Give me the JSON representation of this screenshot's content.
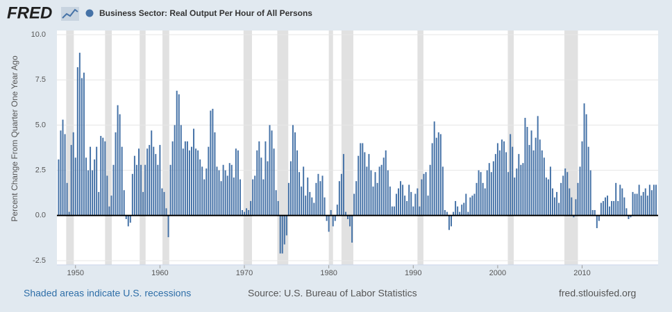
{
  "brand": "FRED",
  "footer": {
    "recessions_note": "Shaded areas indicate U.S. recessions",
    "source": "Source: U.S. Bureau of Labor Statistics",
    "site": "fred.stlouisfed.org"
  },
  "chart_data": {
    "type": "bar",
    "y_label": "Percent Change From Quarter One Year Ago",
    "xlim": [
      1947.8,
      2019.0
    ],
    "ylim": [
      -2.5,
      10.0
    ],
    "xticks": [
      1950,
      1960,
      1970,
      1980,
      1990,
      2000,
      2010
    ],
    "yticks": [
      {
        "value": -2.5,
        "label": "-2.5"
      },
      {
        "value": 0,
        "label": "0.0"
      },
      2.5,
      {
        "value": 5,
        "label": "5.0"
      },
      7.5,
      {
        "value": 10,
        "label": "10.0"
      }
    ],
    "grid": true,
    "recession_color": "#e1e1e1",
    "recessions": [
      [
        1948.9,
        1949.8
      ],
      [
        1953.5,
        1954.3
      ],
      [
        1957.6,
        1958.3
      ],
      [
        1960.3,
        1961.1
      ],
      [
        1969.9,
        1970.9
      ],
      [
        1973.9,
        1975.2
      ],
      [
        1980.0,
        1980.5
      ],
      [
        1981.5,
        1982.9
      ],
      [
        1990.5,
        1991.2
      ],
      [
        2001.2,
        2001.9
      ],
      [
        2007.9,
        2009.5
      ]
    ],
    "x": [
      1948,
      1948.25,
      1948.5,
      1948.75,
      1949,
      1949.25,
      1949.5,
      1949.75,
      1950,
      1950.25,
      1950.5,
      1950.75,
      1951,
      1951.25,
      1951.5,
      1951.75,
      1952,
      1952.25,
      1952.5,
      1952.75,
      1953,
      1953.25,
      1953.5,
      1953.75,
      1954,
      1954.25,
      1954.5,
      1954.75,
      1955,
      1955.25,
      1955.5,
      1955.75,
      1956,
      1956.25,
      1956.5,
      1956.75,
      1957,
      1957.25,
      1957.5,
      1957.75,
      1958,
      1958.25,
      1958.5,
      1958.75,
      1959,
      1959.25,
      1959.5,
      1959.75,
      1960,
      1960.25,
      1960.5,
      1960.75,
      1961,
      1961.25,
      1961.5,
      1961.75,
      1962,
      1962.25,
      1962.5,
      1962.75,
      1963,
      1963.25,
      1963.5,
      1963.75,
      1964,
      1964.25,
      1964.5,
      1964.75,
      1965,
      1965.25,
      1965.5,
      1965.75,
      1966,
      1966.25,
      1966.5,
      1966.75,
      1967,
      1967.25,
      1967.5,
      1967.75,
      1968,
      1968.25,
      1968.5,
      1968.75,
      1969,
      1969.25,
      1969.5,
      1969.75,
      1970,
      1970.25,
      1970.5,
      1970.75,
      1971,
      1971.25,
      1971.5,
      1971.75,
      1972,
      1972.25,
      1972.5,
      1972.75,
      1973,
      1973.25,
      1973.5,
      1973.75,
      1974,
      1974.25,
      1974.5,
      1974.75,
      1975,
      1975.25,
      1975.5,
      1975.75,
      1976,
      1976.25,
      1976.5,
      1976.75,
      1977,
      1977.25,
      1977.5,
      1977.75,
      1978,
      1978.25,
      1978.5,
      1978.75,
      1979,
      1979.25,
      1979.5,
      1979.75,
      1980,
      1980.25,
      1980.5,
      1980.75,
      1981,
      1981.25,
      1981.5,
      1981.75,
      1982,
      1982.25,
      1982.5,
      1982.75,
      1983,
      1983.25,
      1983.5,
      1983.75,
      1984,
      1984.25,
      1984.5,
      1984.75,
      1985,
      1985.25,
      1985.5,
      1985.75,
      1986,
      1986.25,
      1986.5,
      1986.75,
      1987,
      1987.25,
      1987.5,
      1987.75,
      1988,
      1988.25,
      1988.5,
      1988.75,
      1989,
      1989.25,
      1989.5,
      1989.75,
      1990,
      1990.25,
      1990.5,
      1990.75,
      1991,
      1991.25,
      1991.5,
      1991.75,
      1992,
      1992.25,
      1992.5,
      1992.75,
      1993,
      1993.25,
      1993.5,
      1993.75,
      1994,
      1994.25,
      1994.5,
      1994.75,
      1995,
      1995.25,
      1995.5,
      1995.75,
      1996,
      1996.25,
      1996.5,
      1996.75,
      1997,
      1997.25,
      1997.5,
      1997.75,
      1998,
      1998.25,
      1998.5,
      1998.75,
      1999,
      1999.25,
      1999.5,
      1999.75,
      2000,
      2000.25,
      2000.5,
      2000.75,
      2001,
      2001.25,
      2001.5,
      2001.75,
      2002,
      2002.25,
      2002.5,
      2002.75,
      2003,
      2003.25,
      2003.5,
      2003.75,
      2004,
      2004.25,
      2004.5,
      2004.75,
      2005,
      2005.25,
      2005.5,
      2005.75,
      2006,
      2006.25,
      2006.5,
      2006.75,
      2007,
      2007.25,
      2007.5,
      2007.75,
      2008,
      2008.25,
      2008.5,
      2008.75,
      2009,
      2009.25,
      2009.5,
      2009.75,
      2010,
      2010.25,
      2010.5,
      2010.75,
      2011,
      2011.25,
      2011.5,
      2011.75,
      2012,
      2012.25,
      2012.5,
      2012.75,
      2013,
      2013.25,
      2013.5,
      2013.75,
      2014,
      2014.25,
      2014.5,
      2014.75,
      2015,
      2015.25,
      2015.5,
      2015.75,
      2016,
      2016.25,
      2016.5,
      2016.75,
      2017,
      2017.25,
      2017.5,
      2017.75,
      2018,
      2018.25,
      2018.5,
      2018.75
    ],
    "series": [
      {
        "name": "Business Sector: Real Output Per Hour of All Persons",
        "color": "#4572a7",
        "values": [
          3.1,
          4.7,
          5.3,
          4.5,
          1.8,
          0.2,
          3.9,
          4.6,
          3.2,
          8.2,
          9.0,
          7.6,
          7.9,
          3.2,
          2.5,
          3.8,
          2.5,
          3.1,
          3.8,
          1.3,
          4.4,
          4.3,
          4.1,
          2.2,
          0.5,
          1.1,
          2.8,
          4.6,
          6.1,
          5.6,
          3.8,
          1.4,
          -0.2,
          -0.6,
          -0.4,
          2.3,
          3.3,
          2.8,
          3.7,
          2.8,
          1.3,
          2.8,
          3.7,
          3.9,
          4.7,
          3.8,
          3.4,
          2.8,
          3.9,
          1.5,
          1.3,
          0.4,
          -1.2,
          2.8,
          4.1,
          5.0,
          6.9,
          6.7,
          5.0,
          3.7,
          4.1,
          4.1,
          3.6,
          3.8,
          4.8,
          3.7,
          3.6,
          3.1,
          2.7,
          2.0,
          2.6,
          3.8,
          5.8,
          5.9,
          4.6,
          2.7,
          2.5,
          1.9,
          2.8,
          2.5,
          2.2,
          2.9,
          2.8,
          2.1,
          3.7,
          3.6,
          2.0,
          0.3,
          0.2,
          0.4,
          0.3,
          0.8,
          2.0,
          2.2,
          3.6,
          4.1,
          3.2,
          2.0,
          4.1,
          3.0,
          5.0,
          4.7,
          3.7,
          1.4,
          0.8,
          -2.1,
          -2.1,
          -1.6,
          -1.1,
          1.8,
          3.0,
          5.0,
          4.6,
          3.6,
          2.4,
          1.6,
          2.7,
          1.1,
          2.1,
          1.3,
          1.0,
          0.7,
          1.8,
          2.3,
          1.9,
          2.2,
          1.0,
          -0.3,
          -0.9,
          0.3,
          -0.6,
          -0.3,
          0.6,
          1.9,
          2.3,
          3.4,
          0.2,
          -0.2,
          -0.6,
          -1.5,
          1.2,
          1.9,
          3.3,
          4.0,
          4.0,
          3.5,
          2.7,
          3.4,
          2.5,
          1.6,
          2.4,
          1.8,
          2.7,
          2.8,
          3.2,
          3.6,
          2.5,
          1.6,
          0.5,
          0.5,
          1.2,
          1.5,
          1.9,
          1.7,
          1.1,
          0.8,
          1.7,
          1.3,
          0.5,
          1.2,
          1.5,
          0.5,
          2.0,
          2.3,
          2.4,
          1.1,
          2.8,
          4.0,
          5.2,
          4.3,
          4.6,
          4.5,
          2.7,
          0.3,
          0.2,
          -0.8,
          -0.6,
          0.2,
          0.8,
          0.5,
          0.2,
          0.6,
          0.7,
          1.2,
          0.2,
          1.0,
          1.1,
          1.2,
          1.8,
          2.5,
          2.4,
          1.8,
          1.5,
          2.5,
          2.9,
          2.4,
          3.0,
          3.4,
          4.0,
          3.6,
          4.2,
          4.1,
          3.5,
          2.4,
          4.5,
          3.8,
          2.1,
          2.6,
          3.4,
          2.8,
          2.9,
          5.4,
          4.9,
          3.9,
          4.7,
          3.6,
          4.3,
          5.5,
          4.2,
          3.6,
          3.2,
          2.1,
          2.0,
          2.7,
          1.5,
          1.0,
          1.3,
          0.7,
          1.8,
          2.2,
          2.6,
          2.4,
          1.5,
          1.0,
          -0.1,
          0.9,
          1.8,
          2.7,
          4.1,
          6.2,
          5.6,
          3.8,
          2.5,
          0.3,
          0.3,
          -0.7,
          -0.3,
          0.7,
          0.8,
          1.0,
          1.1,
          0.5,
          0.8,
          0.8,
          1.8,
          0.8,
          1.7,
          1.5,
          1.0,
          0.4,
          -0.2,
          -0.1,
          1.3,
          1.2,
          1.2,
          1.7,
          1.1,
          1.3,
          1.5,
          1.1,
          1.7,
          1.4,
          1.7,
          1.7
        ]
      }
    ]
  }
}
